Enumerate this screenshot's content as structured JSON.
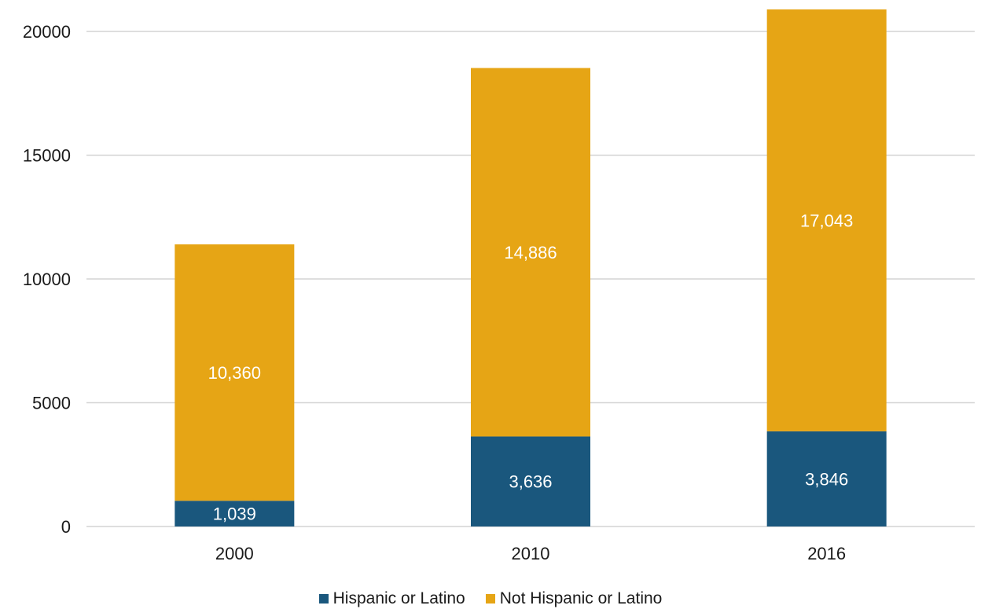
{
  "chart_data": {
    "type": "bar",
    "stacked": true,
    "categories": [
      "2000",
      "2010",
      "2016"
    ],
    "series": [
      {
        "name": "Hispanic or Latino",
        "values": [
          1039,
          3636,
          3846
        ],
        "labels": [
          "1,039",
          "3,636",
          "3,846"
        ],
        "color": "#1a577d"
      },
      {
        "name": "Not Hispanic or Latino",
        "values": [
          10360,
          14886,
          17043
        ],
        "labels": [
          "10,360",
          "14,886",
          "17,043"
        ],
        "color": "#e6a515"
      }
    ],
    "yticks": [
      0,
      5000,
      10000,
      15000,
      20000
    ],
    "ylim": [
      0,
      21000
    ],
    "grid": true,
    "legend_position": "bottom"
  }
}
